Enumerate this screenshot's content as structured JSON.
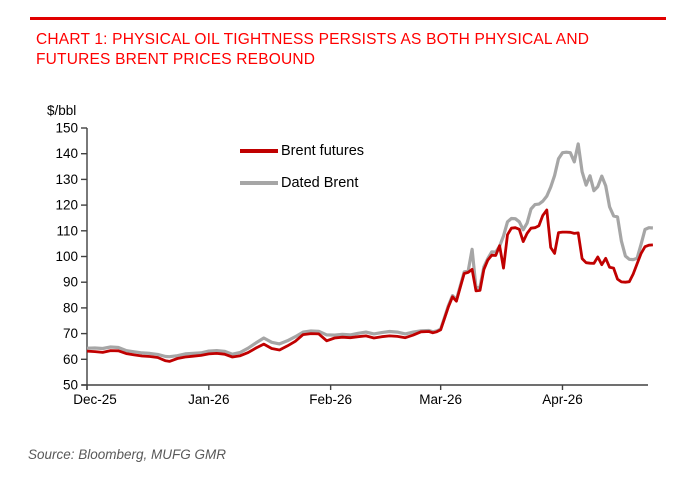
{
  "header": {
    "title_line1": "CHART 1: PHYSICAL OIL TIGHTNESS PERSISTS AS BOTH PHYSICAL AND",
    "title_line2": "FUTURES BRENT PRICES REBOUND"
  },
  "footer": {
    "source": "Source: Bloomberg, MUFG GMR"
  },
  "colors": {
    "title_red": "#ff0000",
    "rule_red": "#e10000",
    "axis": "#404040",
    "brent_futures": "#c00000",
    "dated_brent": "#a6a6a6",
    "source_text": "#595959"
  },
  "chart_data": {
    "type": "line",
    "unit_label": "$/bbl",
    "ylabel": "$/bbl",
    "ylim": [
      50,
      150
    ],
    "yticks": [
      50,
      60,
      70,
      80,
      90,
      100,
      110,
      120,
      130,
      140,
      150
    ],
    "grid": false,
    "legend_position": "top-center-inside",
    "x_axis": {
      "tick_labels": [
        "Dec-25",
        "Jan-26",
        "Feb-26",
        "Mar-26",
        "Apr-26"
      ],
      "tick_days": [
        0,
        31,
        62,
        90,
        121
      ],
      "total_days": 142
    },
    "legend": [
      {
        "name": "Brent futures",
        "color": "#c00000"
      },
      {
        "name": "Dated Brent",
        "color": "#a6a6a6"
      }
    ],
    "series": [
      {
        "name": "Dated Brent",
        "color": "#a6a6a6",
        "width": 3.2,
        "points": [
          [
            0,
            64.3
          ],
          [
            2,
            64.4
          ],
          [
            4,
            64.2
          ],
          [
            6,
            64.8
          ],
          [
            8,
            64.6
          ],
          [
            10,
            63.4
          ],
          [
            12,
            62.9
          ],
          [
            14,
            62.5
          ],
          [
            16,
            62.3
          ],
          [
            18,
            61.9
          ],
          [
            20,
            61.1
          ],
          [
            21,
            61.0
          ],
          [
            23,
            61.4
          ],
          [
            25,
            62.1
          ],
          [
            27,
            62.3
          ],
          [
            29,
            62.5
          ],
          [
            31,
            63.2
          ],
          [
            33,
            63.4
          ],
          [
            35,
            63.1
          ],
          [
            37,
            62.0
          ],
          [
            39,
            62.7
          ],
          [
            41,
            64.3
          ],
          [
            43,
            66.4
          ],
          [
            45,
            68.3
          ],
          [
            47,
            66.6
          ],
          [
            49,
            66.0
          ],
          [
            51,
            67.2
          ],
          [
            53,
            68.8
          ],
          [
            55,
            70.6
          ],
          [
            57,
            71.0
          ],
          [
            59,
            70.9
          ],
          [
            61,
            69.5
          ],
          [
            63,
            69.4
          ],
          [
            65,
            69.7
          ],
          [
            67,
            69.5
          ],
          [
            69,
            70.1
          ],
          [
            71,
            70.6
          ],
          [
            73,
            69.9
          ],
          [
            75,
            70.4
          ],
          [
            77,
            70.8
          ],
          [
            79,
            70.6
          ],
          [
            81,
            69.9
          ],
          [
            83,
            70.6
          ],
          [
            85,
            71.1
          ],
          [
            87,
            71.2
          ],
          [
            88,
            70.7
          ],
          [
            89,
            71.0
          ],
          [
            90,
            71.8
          ],
          [
            91,
            76.4
          ],
          [
            92,
            81.0
          ],
          [
            93,
            84.8
          ],
          [
            94,
            83.2
          ],
          [
            95,
            88.6
          ],
          [
            96,
            94.0
          ],
          [
            97,
            94.4
          ],
          [
            98,
            102.8
          ],
          [
            99,
            87.8
          ],
          [
            100,
            88.2
          ],
          [
            101,
            96.0
          ],
          [
            102,
            99.2
          ],
          [
            103,
            101.8
          ],
          [
            104,
            101.7
          ],
          [
            105,
            104.0
          ],
          [
            106,
            108.0
          ],
          [
            107,
            113.5
          ],
          [
            108,
            114.8
          ],
          [
            109,
            114.7
          ],
          [
            110,
            113.5
          ],
          [
            111,
            110.4
          ],
          [
            112,
            113.0
          ],
          [
            113,
            118.5
          ],
          [
            114,
            120.2
          ],
          [
            115,
            120.4
          ],
          [
            116,
            121.5
          ],
          [
            117,
            123.5
          ],
          [
            118,
            127.0
          ],
          [
            119,
            131.5
          ],
          [
            120,
            138.0
          ],
          [
            121,
            140.4
          ],
          [
            122,
            140.6
          ],
          [
            123,
            140.4
          ],
          [
            124,
            136.8
          ],
          [
            125,
            143.8
          ],
          [
            126,
            133.0
          ],
          [
            127,
            127.8
          ],
          [
            128,
            131.4
          ],
          [
            129,
            125.6
          ],
          [
            130,
            127.2
          ],
          [
            131,
            131.3
          ],
          [
            132,
            127.5
          ],
          [
            133,
            119.3
          ],
          [
            134,
            115.8
          ],
          [
            135,
            115.4
          ],
          [
            136,
            106.0
          ],
          [
            137,
            100.2
          ],
          [
            138,
            98.9
          ],
          [
            139,
            98.8
          ],
          [
            140,
            99.3
          ],
          [
            141,
            104.8
          ],
          [
            142,
            110.5
          ],
          [
            143,
            111.2
          ],
          [
            144,
            111.1
          ]
        ]
      },
      {
        "name": "Brent futures",
        "color": "#c00000",
        "width": 2.8,
        "points": [
          [
            0,
            63.2
          ],
          [
            2,
            63.0
          ],
          [
            4,
            62.7
          ],
          [
            6,
            63.4
          ],
          [
            8,
            63.3
          ],
          [
            10,
            62.2
          ],
          [
            12,
            61.7
          ],
          [
            14,
            61.3
          ],
          [
            16,
            61.1
          ],
          [
            18,
            60.7
          ],
          [
            20,
            59.4
          ],
          [
            21,
            59.2
          ],
          [
            23,
            60.3
          ],
          [
            25,
            60.9
          ],
          [
            27,
            61.2
          ],
          [
            29,
            61.5
          ],
          [
            31,
            62.1
          ],
          [
            33,
            62.3
          ],
          [
            35,
            62.0
          ],
          [
            37,
            60.9
          ],
          [
            39,
            61.4
          ],
          [
            41,
            62.6
          ],
          [
            43,
            64.4
          ],
          [
            45,
            65.9
          ],
          [
            47,
            64.2
          ],
          [
            49,
            63.6
          ],
          [
            51,
            65.2
          ],
          [
            53,
            67.0
          ],
          [
            55,
            69.6
          ],
          [
            57,
            70.0
          ],
          [
            59,
            69.9
          ],
          [
            61,
            67.2
          ],
          [
            63,
            68.3
          ],
          [
            65,
            68.6
          ],
          [
            67,
            68.4
          ],
          [
            69,
            68.8
          ],
          [
            71,
            69.1
          ],
          [
            73,
            68.3
          ],
          [
            75,
            68.8
          ],
          [
            77,
            69.1
          ],
          [
            79,
            68.9
          ],
          [
            81,
            68.4
          ],
          [
            83,
            69.4
          ],
          [
            85,
            70.7
          ],
          [
            87,
            70.8
          ],
          [
            88,
            70.3
          ],
          [
            89,
            70.7
          ],
          [
            90,
            71.5
          ],
          [
            91,
            76.0
          ],
          [
            92,
            80.5
          ],
          [
            93,
            84.3
          ],
          [
            94,
            82.6
          ],
          [
            95,
            88.0
          ],
          [
            96,
            93.4
          ],
          [
            97,
            93.8
          ],
          [
            98,
            95.0
          ],
          [
            99,
            86.6
          ],
          [
            100,
            86.8
          ],
          [
            101,
            95.0
          ],
          [
            102,
            98.6
          ],
          [
            103,
            100.5
          ],
          [
            104,
            100.4
          ],
          [
            105,
            104.2
          ],
          [
            106,
            95.5
          ],
          [
            107,
            108.5
          ],
          [
            108,
            111.0
          ],
          [
            109,
            111.2
          ],
          [
            110,
            110.6
          ],
          [
            111,
            105.8
          ],
          [
            112,
            109.0
          ],
          [
            113,
            111.0
          ],
          [
            114,
            111.2
          ],
          [
            115,
            112.0
          ],
          [
            116,
            116.0
          ],
          [
            117,
            118.1
          ],
          [
            118,
            103.5
          ],
          [
            119,
            101.2
          ],
          [
            120,
            109.3
          ],
          [
            121,
            109.5
          ],
          [
            122,
            109.5
          ],
          [
            123,
            109.4
          ],
          [
            124,
            109.0
          ],
          [
            125,
            109.2
          ],
          [
            126,
            99.2
          ],
          [
            127,
            97.6
          ],
          [
            128,
            97.4
          ],
          [
            129,
            97.3
          ],
          [
            130,
            99.8
          ],
          [
            131,
            96.8
          ],
          [
            132,
            99.3
          ],
          [
            133,
            95.8
          ],
          [
            134,
            95.5
          ],
          [
            135,
            91.2
          ],
          [
            136,
            90.1
          ],
          [
            137,
            90.0
          ],
          [
            138,
            90.2
          ],
          [
            139,
            93.2
          ],
          [
            140,
            97.2
          ],
          [
            141,
            101.2
          ],
          [
            142,
            103.8
          ],
          [
            143,
            104.4
          ],
          [
            144,
            104.5
          ]
        ]
      }
    ]
  }
}
